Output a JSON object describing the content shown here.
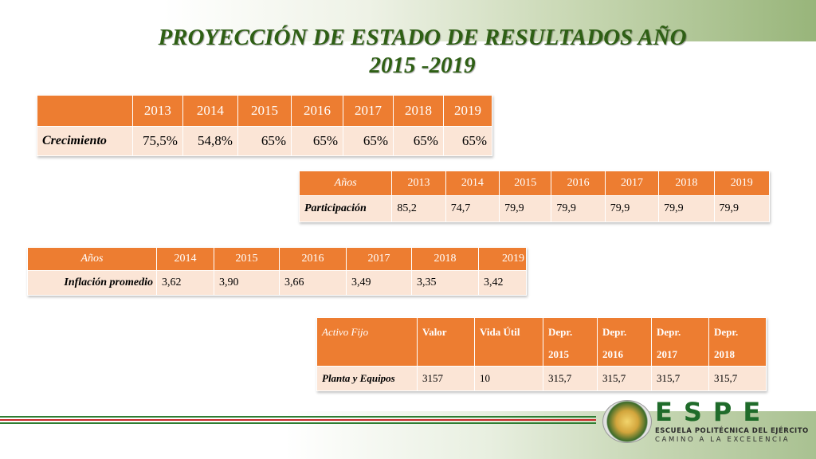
{
  "title_line1": "PROYECCIÓN DE ESTADO DE RESULTADOS AÑO",
  "title_line2": "2015 -2019",
  "colors": {
    "header_fill": "#ed7d31",
    "row_fill": "#fbe5d6",
    "title": "#2e5f14"
  },
  "table_growth": {
    "headers": [
      "",
      "2013",
      "2014",
      "2015",
      "2016",
      "2017",
      "2018",
      "2019"
    ],
    "row": [
      "Crecimiento",
      "75,5%",
      "54,8%",
      "65%",
      "65%",
      "65%",
      "65%",
      "65%"
    ]
  },
  "table_participation": {
    "headers": [
      "Años",
      "2013",
      "2014",
      "2015",
      "2016",
      "2017",
      "2018",
      "2019"
    ],
    "row": [
      "Participación",
      "85,2",
      "74,7",
      "79,9",
      "79,9",
      "79,9",
      "79,9",
      "79,9"
    ]
  },
  "table_inflation": {
    "headers": [
      "Años",
      "2014",
      "2015",
      "2016",
      "2017",
      "2018",
      "2019"
    ],
    "row": [
      "Inflación promedio",
      "3,62",
      "3,90",
      "3,66",
      "3,49",
      "3,35",
      "3,42"
    ]
  },
  "table_assets": {
    "headers": [
      "Activo Fijo",
      "Valor",
      "Vida Útil",
      "Depr. 2015",
      "Depr. 2016",
      "Depr. 2017",
      "Depr. 2018"
    ],
    "row": [
      "Planta y Equipos",
      "3157",
      "10",
      "315,7",
      "315,7",
      "315,7",
      "315,7"
    ]
  },
  "logo": {
    "letters": "ESPE",
    "line1": "ESCUELA POLITÉCNICA DEL EJÉRCITO",
    "line2": "CAMINO A LA EXCELENCIA",
    "seal_icon": "espe-seal-icon"
  }
}
